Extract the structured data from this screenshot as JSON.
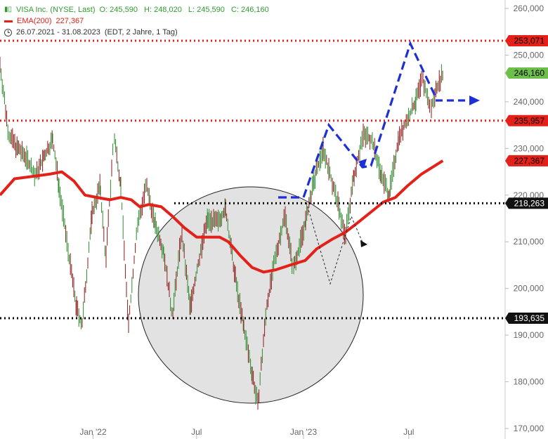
{
  "legend": {
    "series_name": "VISA Inc. (NYSE, Last)",
    "open": "O: 245,590",
    "high": "H: 248,020",
    "low": "L: 245,590",
    "close": "C: 246,160",
    "ema_name": "EMA(200)",
    "ema_value": "227,367",
    "period": "26.07.2021 - 31.08.2023",
    "meta": "(EDT, 2 Jahre, 1 Tag)"
  },
  "chart_data": {
    "type": "line",
    "x_axis_labels": [
      "Jan '22",
      "Jul",
      "Jan '23",
      "Jul"
    ],
    "y_axis": {
      "min": 170000,
      "max": 260000,
      "ticks": [
        "260,000",
        "250,000",
        "240,000",
        "230,000",
        "220,000",
        "210,000",
        "200,000",
        "190,000",
        "180,000",
        "170,000"
      ],
      "tick_values": [
        260000,
        250000,
        240000,
        230000,
        220000,
        210000,
        200000,
        190000,
        180000,
        170000
      ]
    },
    "price_series": {
      "name": "VISA Inc.",
      "color": "#2e8b2e",
      "points": [
        [
          "2021-07-26",
          248
        ],
        [
          "2021-08-10",
          233
        ],
        [
          "2021-08-25",
          230
        ],
        [
          "2021-09-10",
          228
        ],
        [
          "2021-09-25",
          224
        ],
        [
          "2021-10-10",
          228
        ],
        [
          "2021-10-25",
          232
        ],
        [
          "2021-11-05",
          222
        ],
        [
          "2021-11-20",
          209
        ],
        [
          "2021-12-05",
          196
        ],
        [
          "2021-12-15",
          192
        ],
        [
          "2022-01-01",
          216
        ],
        [
          "2022-01-15",
          222
        ],
        [
          "2022-01-25",
          206
        ],
        [
          "2022-02-08",
          233
        ],
        [
          "2022-02-20",
          222
        ],
        [
          "2022-03-05",
          192
        ],
        [
          "2022-03-20",
          213
        ],
        [
          "2022-04-05",
          222
        ],
        [
          "2022-04-20",
          214
        ],
        [
          "2022-05-05",
          208
        ],
        [
          "2022-05-20",
          194
        ],
        [
          "2022-06-05",
          212
        ],
        [
          "2022-06-20",
          196
        ],
        [
          "2022-07-05",
          206
        ],
        [
          "2022-07-20",
          215
        ],
        [
          "2022-08-05",
          214
        ],
        [
          "2022-08-20",
          217
        ],
        [
          "2022-09-05",
          203
        ],
        [
          "2022-09-20",
          192
        ],
        [
          "2022-10-05",
          182
        ],
        [
          "2022-10-15",
          175
        ],
        [
          "2022-10-30",
          196
        ],
        [
          "2022-11-15",
          207
        ],
        [
          "2022-12-01",
          216
        ],
        [
          "2022-12-15",
          204
        ],
        [
          "2023-01-05",
          214
        ],
        [
          "2023-01-20",
          223
        ],
        [
          "2023-02-05",
          230
        ],
        [
          "2023-02-20",
          223
        ],
        [
          "2023-03-05",
          217
        ],
        [
          "2023-03-15",
          211
        ],
        [
          "2023-03-30",
          224
        ],
        [
          "2023-04-15",
          233
        ],
        [
          "2023-04-30",
          232
        ],
        [
          "2023-05-15",
          225
        ],
        [
          "2023-05-30",
          220
        ],
        [
          "2023-06-15",
          232
        ],
        [
          "2023-06-30",
          236
        ],
        [
          "2023-07-15",
          240
        ],
        [
          "2023-07-27",
          245
        ],
        [
          "2023-08-10",
          238
        ],
        [
          "2023-08-20",
          243
        ],
        [
          "2023-08-31",
          246.16
        ]
      ]
    },
    "ema_series": {
      "name": "EMA(200)",
      "color": "#e32119",
      "points": [
        [
          "2021-07-26",
          220
        ],
        [
          "2021-08-20",
          223.5
        ],
        [
          "2021-09-20",
          224
        ],
        [
          "2021-10-20",
          224.5
        ],
        [
          "2021-11-10",
          225
        ],
        [
          "2021-12-01",
          223
        ],
        [
          "2021-12-20",
          220
        ],
        [
          "2022-01-10",
          219.5
        ],
        [
          "2022-02-01",
          219
        ],
        [
          "2022-02-20",
          219.5
        ],
        [
          "2022-03-10",
          219
        ],
        [
          "2022-03-25",
          217.5
        ],
        [
          "2022-04-10",
          218
        ],
        [
          "2022-05-01",
          217.5
        ],
        [
          "2022-05-20",
          215.5
        ],
        [
          "2022-06-10",
          213
        ],
        [
          "2022-07-01",
          211
        ],
        [
          "2022-07-20",
          211
        ],
        [
          "2022-08-10",
          211
        ],
        [
          "2022-08-25",
          210
        ],
        [
          "2022-09-15",
          207
        ],
        [
          "2022-10-05",
          204.5
        ],
        [
          "2022-10-25",
          203.5
        ],
        [
          "2022-11-15",
          204
        ],
        [
          "2022-12-10",
          205
        ],
        [
          "2023-01-05",
          206
        ],
        [
          "2023-01-25",
          208.5
        ],
        [
          "2023-02-20",
          210.5
        ],
        [
          "2023-03-15",
          212
        ],
        [
          "2023-04-05",
          214
        ],
        [
          "2023-04-30",
          216.5
        ],
        [
          "2023-05-20",
          218.5
        ],
        [
          "2023-06-10",
          219.5
        ],
        [
          "2023-07-01",
          222
        ],
        [
          "2023-07-25",
          224.5
        ],
        [
          "2023-08-31",
          227.367
        ]
      ]
    },
    "horizontal_levels": [
      {
        "value": 253071,
        "label": "253,071",
        "style": "dotted",
        "color": "#e32119",
        "badge_bg": "#e32119",
        "badge_fg": "#000000"
      },
      {
        "value": 235957,
        "label": "235,957",
        "style": "dotted",
        "color": "#e32119",
        "badge_bg": "#e32119",
        "badge_fg": "#000000"
      },
      {
        "value": 218263,
        "label": "218,263",
        "style": "dotted",
        "color": "#000000",
        "badge_bg": "#111111",
        "badge_fg": "#ffffff"
      },
      {
        "value": 193635,
        "label": "193,635",
        "style": "dotted",
        "color": "#000000",
        "badge_bg": "#111111",
        "badge_fg": "#ffffff"
      }
    ],
    "value_badges": [
      {
        "value": 246160,
        "label": "246,160",
        "bg": "#6cc04a",
        "fg": "#000000"
      },
      {
        "value": 227367,
        "label": "227,367",
        "bg": "#e32119",
        "fg": "#000000"
      }
    ],
    "colors": {
      "price_up": "#2e8b2e",
      "price_down": "#8b1a1a",
      "ema": "#e32119",
      "projection_blue": "#1f2fd6",
      "circle_fill": "#e2e2e2"
    }
  }
}
